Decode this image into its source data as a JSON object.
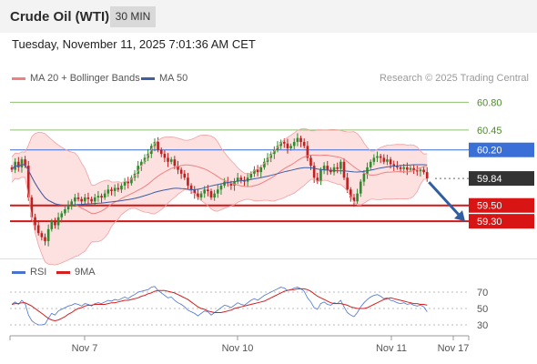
{
  "header": {
    "instrument": "Crude Oil (WTI)",
    "timeframe": "30 MIN",
    "datetime": "Tuesday, November 11, 2025 7:01:36 AM CET"
  },
  "legend": {
    "bollinger_label": "MA 20 + Bollinger Bands",
    "ma50_label": "MA 50",
    "credit": "Research © 2025 Trading Central",
    "rsi_label": "RSI",
    "rsi_ma_label": "9MA"
  },
  "colors": {
    "bollinger": "#f08080",
    "bollinger_fill": "#fde0e0",
    "ma50": "#3b5ea7",
    "up_candle": "#2e8b2e",
    "down_candle": "#c02020",
    "resistance": "#8dc26f",
    "pivot": "#3a6fd8",
    "support": "#d81414",
    "last_price": "#333333",
    "rsi": "#4a72d0",
    "rsi_ma": "#d42020",
    "arrow": "#2f5fa0"
  },
  "chart_data": [
    {
      "type": "candlestick",
      "x_tick_labels": [
        "Nov 7",
        "Nov 10",
        "Nov 11",
        "Nov 17"
      ],
      "ylim": [
        58.9,
        61.0
      ],
      "overlays": [
        "MA 20 + Bollinger Bands",
        "MA 50"
      ],
      "levels": [
        {
          "label": "60.80",
          "value": 60.8,
          "kind": "resistance"
        },
        {
          "label": "60.45",
          "value": 60.45,
          "kind": "resistance"
        },
        {
          "label": "60.20",
          "value": 60.2,
          "kind": "pivot"
        },
        {
          "label": "59.84",
          "value": 59.84,
          "kind": "last_price"
        },
        {
          "label": "59.50",
          "value": 59.5,
          "kind": "support"
        },
        {
          "label": "59.30",
          "value": 59.3,
          "kind": "support"
        }
      ],
      "last_price": 59.84,
      "forecast": {
        "direction": "down",
        "target": 59.3
      },
      "close": [
        59.95,
        60.05,
        59.98,
        60.08,
        60.0,
        59.6,
        59.35,
        59.25,
        59.15,
        59.1,
        59.05,
        59.2,
        59.3,
        59.25,
        59.35,
        59.4,
        59.45,
        59.5,
        59.55,
        59.6,
        59.58,
        59.55,
        59.6,
        59.58,
        59.55,
        59.6,
        59.62,
        59.6,
        59.65,
        59.7,
        59.68,
        59.72,
        59.7,
        59.75,
        59.8,
        59.78,
        59.85,
        59.9,
        60.0,
        60.05,
        60.1,
        60.15,
        60.25,
        60.3,
        60.2,
        60.15,
        60.1,
        60.05,
        60.08,
        60.0,
        59.95,
        59.9,
        59.85,
        59.75,
        59.7,
        59.65,
        59.6,
        59.65,
        59.7,
        59.68,
        59.6,
        59.65,
        59.7,
        59.75,
        59.8,
        59.78,
        59.75,
        59.8,
        59.85,
        59.82,
        59.8,
        59.85,
        59.9,
        59.95,
        59.92,
        59.98,
        60.05,
        60.1,
        60.15,
        60.2,
        60.25,
        60.3,
        60.28,
        60.22,
        60.25,
        60.3,
        60.35,
        60.3,
        60.25,
        60.1,
        60.0,
        59.85,
        59.8,
        59.95,
        60.0,
        59.95,
        59.92,
        59.98,
        59.96,
        60.05,
        59.85,
        59.7,
        59.6,
        59.55,
        59.65,
        59.8,
        59.9,
        59.98,
        60.05,
        60.1,
        60.12,
        60.1,
        60.05,
        60.08,
        60.02,
        60.0,
        59.98,
        59.96,
        59.98,
        59.95,
        59.97,
        59.94,
        59.93,
        59.95,
        59.92,
        59.84
      ]
    },
    {
      "type": "line",
      "title": "RSI",
      "series": [
        {
          "name": "RSI"
        },
        {
          "name": "9MA"
        }
      ],
      "y_tick_labels": [
        "70",
        "50",
        "30"
      ],
      "ylim": [
        20,
        80
      ],
      "rsi": [
        55,
        58,
        55,
        60,
        56,
        42,
        35,
        32,
        30,
        30,
        31,
        38,
        44,
        42,
        47,
        49,
        51,
        53,
        54,
        56,
        55,
        53,
        56,
        55,
        53,
        56,
        57,
        56,
        58,
        60,
        59,
        61,
        60,
        62,
        64,
        62,
        65,
        67,
        70,
        71,
        72,
        73,
        76,
        77,
        72,
        69,
        66,
        63,
        64,
        60,
        57,
        55,
        52,
        48,
        46,
        44,
        41,
        44,
        47,
        46,
        42,
        45,
        48,
        51,
        54,
        53,
        51,
        54,
        57,
        55,
        54,
        57,
        60,
        62,
        60,
        63,
        66,
        68,
        70,
        72,
        74,
        76,
        75,
        72,
        73,
        75,
        76,
        74,
        71,
        63,
        58,
        51,
        49,
        56,
        58,
        55,
        54,
        57,
        56,
        60,
        52,
        45,
        42,
        40,
        45,
        52,
        57,
        61,
        64,
        66,
        67,
        65,
        62,
        63,
        60,
        59,
        57,
        56,
        57,
        55,
        56,
        54,
        53,
        54,
        52,
        46
      ],
      "rsi_ma": [
        55,
        56,
        56,
        57,
        57,
        55,
        53,
        50,
        47,
        44,
        41,
        38,
        36,
        35,
        36,
        38,
        40,
        43,
        45,
        48,
        50,
        51,
        53,
        54,
        54,
        55,
        55,
        55,
        55,
        56,
        57,
        57,
        58,
        59,
        60,
        60,
        61,
        62,
        63,
        65,
        66,
        68,
        69,
        71,
        72,
        72,
        72,
        71,
        70,
        69,
        67,
        65,
        63,
        61,
        58,
        55,
        52,
        50,
        49,
        47,
        46,
        45,
        45,
        45,
        46,
        47,
        48,
        50,
        51,
        52,
        53,
        54,
        55,
        56,
        57,
        58,
        59,
        61,
        63,
        65,
        67,
        69,
        71,
        72,
        73,
        73,
        74,
        74,
        74,
        73,
        71,
        68,
        65,
        63,
        61,
        59,
        57,
        56,
        56,
        56,
        55,
        54,
        52,
        51,
        50,
        50,
        50,
        51,
        53,
        55,
        57,
        59,
        61,
        62,
        63,
        62,
        61,
        60,
        59,
        58,
        57,
        56,
        56,
        55,
        55,
        54
      ]
    }
  ]
}
